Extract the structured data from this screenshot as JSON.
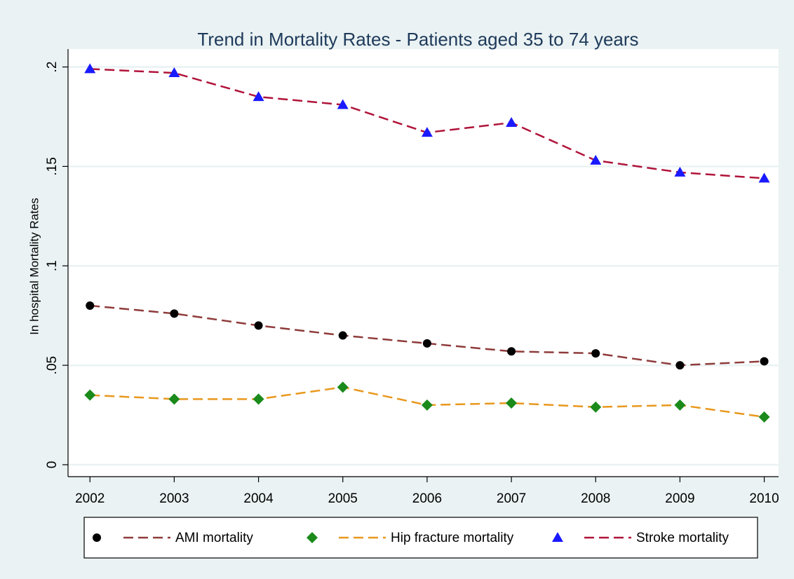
{
  "chart_data": {
    "type": "line",
    "title": "Trend in Mortality Rates - Patients aged 35 to 74 years",
    "y_label": "In hospital Mortality Rates",
    "x": [
      2002,
      2003,
      2004,
      2005,
      2006,
      2007,
      2008,
      2009,
      2010
    ],
    "xlim": [
      2001.74,
      2010.17
    ],
    "xticks": [
      2002,
      2003,
      2004,
      2005,
      2006,
      2007,
      2008,
      2009,
      2010
    ],
    "ylim": [
      -0.006,
      0.209
    ],
    "yticks": [
      0,
      {
        "value": 0.05,
        "label": ".05"
      },
      {
        "value": 0.1,
        "label": ".1"
      },
      {
        "value": 0.15,
        "label": ".15"
      },
      {
        "value": 0.2,
        "label": ".2"
      }
    ],
    "grid": true,
    "legend": "bottom",
    "series": [
      {
        "name": "AMI mortality",
        "color": "#8f3b3b",
        "marker": "circle",
        "marker_color": "#000000",
        "values": [
          0.08,
          0.076,
          0.07,
          0.065,
          0.061,
          0.057,
          0.056,
          0.05,
          0.052
        ]
      },
      {
        "name": "Hip fracture mortality",
        "color": "#e8981e",
        "marker": "diamond",
        "marker_color": "#1a8a1a",
        "values": [
          0.035,
          0.033,
          0.033,
          0.039,
          0.03,
          0.031,
          0.029,
          0.03,
          0.024
        ]
      },
      {
        "name": "Stroke mortality",
        "color": "#b0143a",
        "marker": "triangle",
        "marker_color": "#1a1aff",
        "values": [
          0.199,
          0.197,
          0.185,
          0.181,
          0.167,
          0.172,
          0.153,
          0.147,
          0.144
        ]
      }
    ]
  }
}
